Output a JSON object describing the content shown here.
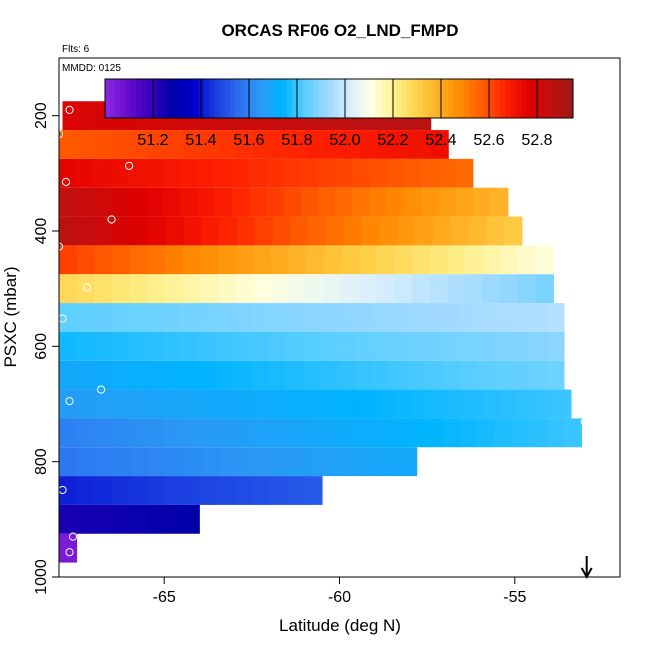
{
  "chart_data": {
    "type": "heatmap",
    "title": "ORCAS RF06 O2_LND_FMPD",
    "subtitle_flights": "Flts: 6",
    "subtitle_date": "MMDD: 0125",
    "xlabel": "Latitude (deg N)",
    "ylabel": "PSXC (mbar)",
    "xlim": [
      -68,
      -52
    ],
    "ylim": [
      1000,
      100
    ],
    "x_ticks": [
      -65,
      -60,
      -55
    ],
    "x_tick_labels": [
      "-65",
      "-60",
      "-55"
    ],
    "y_ticks": [
      200,
      400,
      600,
      800,
      1000
    ],
    "y_tick_labels": [
      "200",
      "400",
      "600",
      "800",
      "1000"
    ],
    "colorbar": {
      "min": 51.0,
      "max": 52.95,
      "ticks": [
        51.2,
        51.4,
        51.6,
        51.8,
        52.0,
        52.2,
        52.4,
        52.6,
        52.8
      ],
      "tick_labels": [
        "51.2",
        "51.4",
        "51.6",
        "51.8",
        "52.0",
        "52.2",
        "52.4",
        "52.6",
        "52.8"
      ],
      "colors": [
        "#8a2be2",
        "#6a0dcc",
        "#3a00c0",
        "#0000a8",
        "#0000cc",
        "#1a3fe0",
        "#2e6df0",
        "#2a9af5",
        "#00b4ff",
        "#5ccfff",
        "#9ed9ff",
        "#d8efff",
        "#ffffe0",
        "#fff08a",
        "#ffd24a",
        "#ffae22",
        "#ff8a00",
        "#ff5a00",
        "#ff2000",
        "#e00000",
        "#c01010",
        "#a01818"
      ]
    },
    "bins": [
      {
        "p_top": 175,
        "p_bot": 225,
        "lat_min": -67.9,
        "lat_max": -57.4,
        "v_start": 52.78,
        "v_end": 52.88
      },
      {
        "p_top": 225,
        "p_bot": 275,
        "lat_min": -68.0,
        "lat_max": -56.9,
        "v_start": 52.58,
        "v_end": 52.72
      },
      {
        "p_top": 275,
        "p_bot": 325,
        "lat_min": -68.0,
        "lat_max": -56.2,
        "v_start": 52.75,
        "v_end": 52.55
      },
      {
        "p_top": 325,
        "p_bot": 375,
        "lat_min": -68.0,
        "lat_max": -55.2,
        "v_start": 52.85,
        "v_end": 52.38
      },
      {
        "p_top": 375,
        "p_bot": 425,
        "lat_min": -68.0,
        "lat_max": -54.8,
        "v_start": 52.86,
        "v_end": 52.32
      },
      {
        "p_top": 425,
        "p_bot": 475,
        "lat_min": -68.0,
        "lat_max": -53.9,
        "v_start": 52.62,
        "v_end": 52.12
      },
      {
        "p_top": 475,
        "p_bot": 525,
        "lat_min": -68.0,
        "lat_max": -53.9,
        "v_start": 52.28,
        "v_end": 51.88
      },
      {
        "p_top": 525,
        "p_bot": 575,
        "lat_min": -68.0,
        "lat_max": -53.6,
        "v_start": 51.84,
        "v_end": 51.96
      },
      {
        "p_top": 575,
        "p_bot": 625,
        "lat_min": -68.0,
        "lat_max": -53.6,
        "v_start": 51.76,
        "v_end": 51.9
      },
      {
        "p_top": 625,
        "p_bot": 675,
        "lat_min": -68.0,
        "lat_max": -53.6,
        "v_start": 51.7,
        "v_end": 51.86
      },
      {
        "p_top": 675,
        "p_bot": 725,
        "lat_min": -68.0,
        "lat_max": -53.4,
        "v_start": 51.66,
        "v_end": 51.8
      },
      {
        "p_top": 725,
        "p_bot": 775,
        "lat_min": -68.0,
        "lat_max": -53.1,
        "v_start": 51.6,
        "v_end": 51.8
      },
      {
        "p_top": 775,
        "p_bot": 825,
        "lat_min": -68.0,
        "lat_max": -57.8,
        "v_start": 51.58,
        "v_end": 51.7
      },
      {
        "p_top": 825,
        "p_bot": 875,
        "lat_min": -68.0,
        "lat_max": -60.5,
        "v_start": 51.42,
        "v_end": 51.52
      },
      {
        "p_top": 875,
        "p_bot": 925,
        "lat_min": -68.0,
        "lat_max": -64.0,
        "v_start": 51.24,
        "v_end": 51.28
      },
      {
        "p_top": 925,
        "p_bot": 975,
        "lat_min": -68.0,
        "lat_max": -67.5,
        "v_start": 51.05,
        "v_end": 51.15
      }
    ],
    "points": [
      {
        "lat": -67.7,
        "p": 190
      },
      {
        "lat": -64.8,
        "p": 190
      },
      {
        "lat": -64.5,
        "p": 190
      },
      {
        "lat": -64.2,
        "p": 190
      },
      {
        "lat": -63.8,
        "p": 190
      },
      {
        "lat": -63.5,
        "p": 190
      },
      {
        "lat": -63.3,
        "p": 190
      },
      {
        "lat": -61.9,
        "p": 190
      },
      {
        "lat": -60.3,
        "p": 190
      },
      {
        "lat": -57.4,
        "p": 190
      },
      {
        "lat": -68.0,
        "p": 232
      },
      {
        "lat": -66.0,
        "p": 287
      },
      {
        "lat": -67.8,
        "p": 315
      },
      {
        "lat": -66.5,
        "p": 380
      },
      {
        "lat": -68.0,
        "p": 427
      },
      {
        "lat": -67.2,
        "p": 498
      },
      {
        "lat": -67.9,
        "p": 552
      },
      {
        "lat": -66.8,
        "p": 675
      },
      {
        "lat": -67.7,
        "p": 695
      },
      {
        "lat": -53.0,
        "p": 731
      },
      {
        "lat": -67.9,
        "p": 849
      },
      {
        "lat": -67.6,
        "p": 930
      },
      {
        "lat": -67.7,
        "p": 957
      }
    ],
    "arrow": {
      "lat": -52.95,
      "direction": "down"
    }
  }
}
